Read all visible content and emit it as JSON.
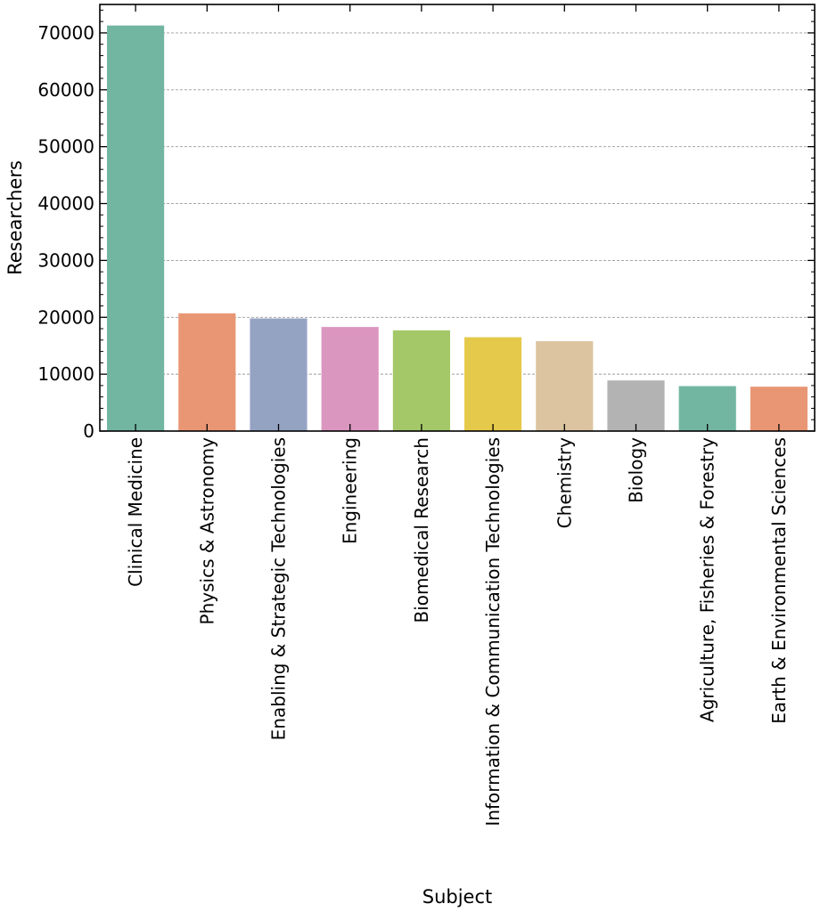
{
  "chart_data": {
    "type": "bar",
    "title": "",
    "xlabel": "Subject",
    "ylabel": "Researchers",
    "categories": [
      "Clinical Medicine",
      "Physics & Astronomy",
      "Enabling & Strategic Technologies",
      "Engineering",
      "Biomedical Research",
      "Information & Communication Technologies",
      "Chemistry",
      "Biology",
      "Agriculture, Fisheries & Forestry",
      "Earth & Environmental Sciences"
    ],
    "values": [
      71300,
      20700,
      19800,
      18300,
      17700,
      16500,
      15800,
      8900,
      7900,
      7800
    ],
    "colors": [
      "#72b6a1",
      "#e99675",
      "#95a3c3",
      "#db96c0",
      "#a4c868",
      "#e5c94a",
      "#dbc49f",
      "#b3b3b3",
      "#72b6a1",
      "#e99675"
    ],
    "ylim": [
      0,
      75000
    ],
    "yticks": [
      0,
      10000,
      20000,
      30000,
      40000,
      50000,
      60000,
      70000
    ],
    "grid": "y-dashed",
    "legend": "none"
  }
}
